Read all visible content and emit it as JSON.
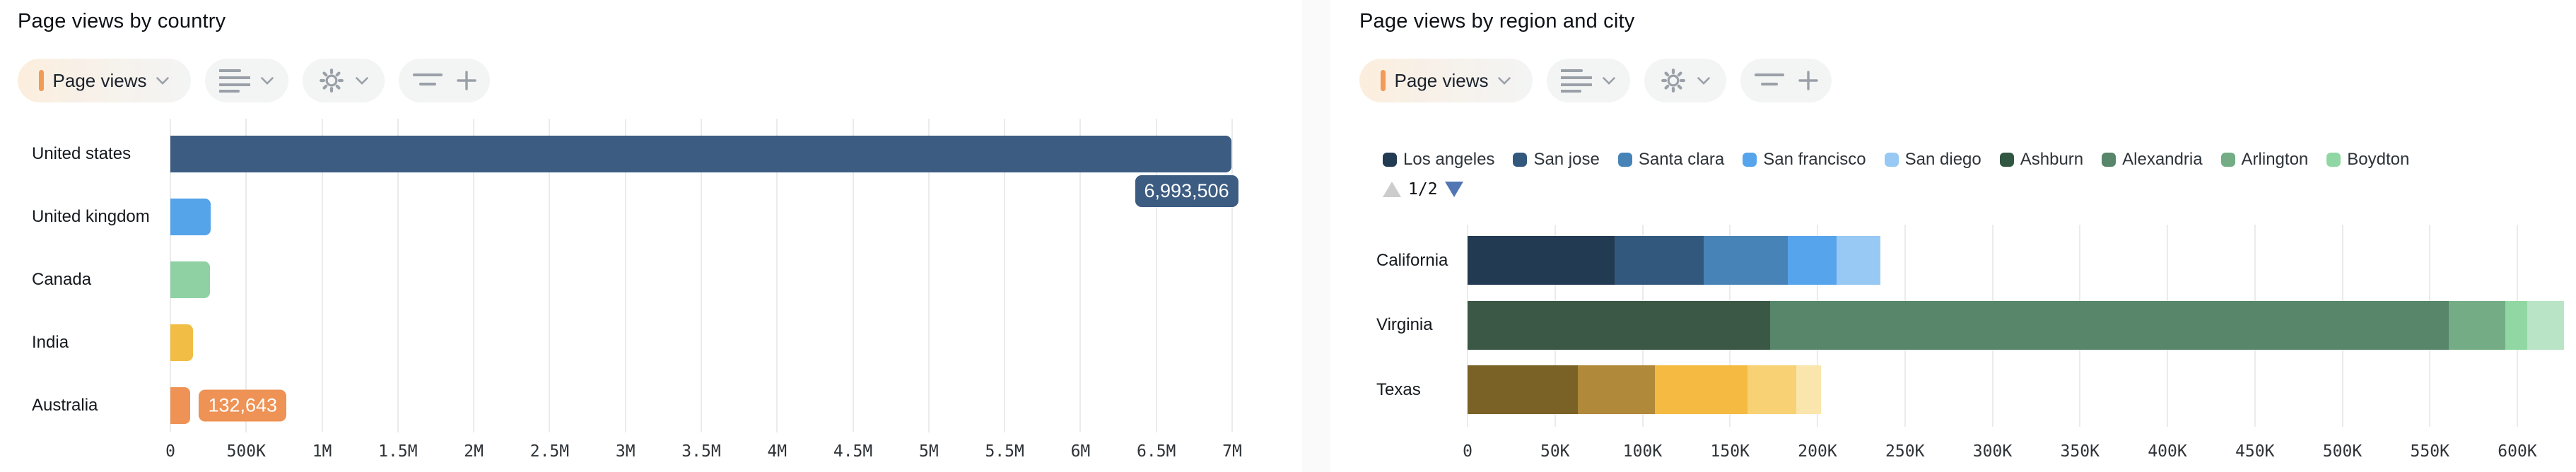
{
  "ui": {
    "toolbar": {
      "metric_label": "Page views",
      "metric_marker_color": "#f29a57",
      "buttons": [
        "metric-selector",
        "breakdown-options",
        "settings",
        "add-filter"
      ]
    },
    "legend_pagination": {
      "page": "1/2",
      "prev_enabled": false,
      "next_enabled": true
    },
    "colors": {
      "page_background": "#fafafa",
      "card_background": "#ffffff",
      "pill_background": "#f3f4f4",
      "icon_gray": "#9aa0a8",
      "grid_line": "#ebebeb",
      "tick_text": "#2e3338",
      "label_text": "#15191e",
      "title_text": "#0d1116",
      "legend_text": "#2d3339",
      "pagination_up_disabled": "#cccccc",
      "pagination_down_active": "#5076b4"
    }
  },
  "chart_data": [
    {
      "type": "bar",
      "orientation": "horizontal",
      "title": "Page views by country",
      "grid": true,
      "legend_position": "none",
      "xlim": [
        0,
        7000000
      ],
      "x_ticks": [
        "0",
        "500K",
        "1M",
        "1.5M",
        "2M",
        "2.5M",
        "3M",
        "3.5M",
        "4M",
        "4.5M",
        "5M",
        "5.5M",
        "6M",
        "6.5M",
        "7M"
      ],
      "rows": [
        {
          "label": "United states",
          "value": 6993506,
          "color": "#3c5c82",
          "data_label": "6,993,506",
          "data_label_position": "below-bar-end"
        },
        {
          "label": "United kingdom",
          "value": 265000,
          "color": "#55a3e8"
        },
        {
          "label": "Canada",
          "value": 262000,
          "color": "#90d1a4"
        },
        {
          "label": "India",
          "value": 150000,
          "color": "#f2bd45"
        },
        {
          "label": "Australia",
          "value": 132643,
          "color": "#ee9255",
          "data_label": "132,643",
          "data_label_position": "right-of-bar"
        }
      ],
      "note": "United states and Australia values shown as data labels; other values estimated from gridlines"
    },
    {
      "type": "bar",
      "stacked": true,
      "orientation": "horizontal",
      "title": "Page views by region and city",
      "grid": true,
      "legend_position": "top",
      "legend_page": "1/2",
      "xlim": [
        0,
        650000
      ],
      "x_ticks": [
        "0",
        "50K",
        "100K",
        "150K",
        "200K",
        "250K",
        "300K",
        "350K",
        "400K",
        "450K",
        "500K",
        "550K",
        "600K"
      ],
      "legend": [
        {
          "label": "Los angeles",
          "color": "#223a52"
        },
        {
          "label": "San jose",
          "color": "#33587e"
        },
        {
          "label": "Santa clara",
          "color": "#4783b7"
        },
        {
          "label": "San francisco",
          "color": "#56a4ec"
        },
        {
          "label": "San diego",
          "color": "#97c9f4"
        },
        {
          "label": "Ashburn",
          "color": "#315641"
        },
        {
          "label": "Alexandria",
          "color": "#57866a"
        },
        {
          "label": "Arlington",
          "color": "#74ad85"
        },
        {
          "label": "Boydton",
          "color": "#91d7a3"
        }
      ],
      "bars": [
        {
          "category": "California",
          "segments": [
            {
              "city": "Los angeles",
              "value": 84000,
              "color": "#223a52"
            },
            {
              "city": "San jose",
              "value": 51000,
              "color": "#33587e"
            },
            {
              "city": "Santa clara",
              "value": 48000,
              "color": "#4783b7"
            },
            {
              "city": "San francisco",
              "value": 28000,
              "color": "#56a4ec"
            },
            {
              "city": "San diego",
              "value": 25000,
              "color": "#97c9f4"
            }
          ]
        },
        {
          "category": "Virginia",
          "segments": [
            {
              "city": "Ashburn",
              "value": 173000,
              "color": "#3a5845"
            },
            {
              "city": "Alexandria",
              "value": 388000,
              "color": "#57866a"
            },
            {
              "city": "Arlington",
              "value": 32000,
              "color": "#74ad85"
            },
            {
              "city": "Boydton",
              "value": 12500,
              "color": "#91d7a3"
            },
            {
              "city": null,
              "value": 21000,
              "color": "#b9e4c5"
            }
          ]
        },
        {
          "category": "Texas",
          "segments": [
            {
              "city": null,
              "value": 63000,
              "color": "#7a6227"
            },
            {
              "city": null,
              "value": 44000,
              "color": "#b0893a"
            },
            {
              "city": null,
              "value": 53000,
              "color": "#f4ba41"
            },
            {
              "city": null,
              "value": 28000,
              "color": "#f8d174"
            },
            {
              "city": null,
              "value": 14000,
              "color": "#fae5ac"
            }
          ]
        }
      ],
      "note": "Cities with null names belong to legend page 2 (not visible); values estimated from gridlines"
    }
  ]
}
